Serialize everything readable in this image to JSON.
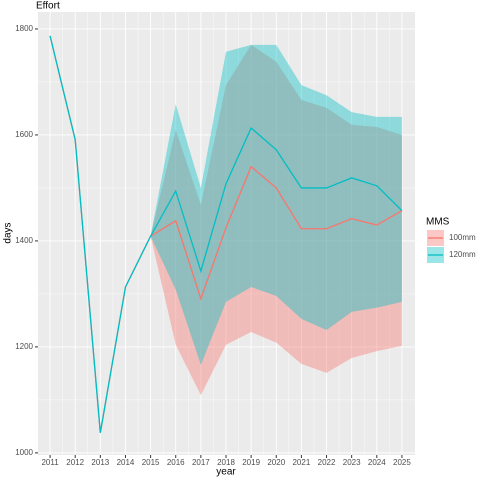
{
  "chart_data": {
    "type": "line",
    "title": "Effort",
    "x_label": "year",
    "y_label": "days",
    "x": [
      2011,
      2012,
      2013,
      2014,
      2015,
      2016,
      2017,
      2018,
      2019,
      2020,
      2021,
      2022,
      2023,
      2024,
      2025
    ],
    "series": [
      {
        "name": "100mm",
        "color": "#F8766D",
        "values": [
          1787,
          1591,
          1038,
          1313,
          1409,
          1438,
          1291,
          1425,
          1540,
          1500,
          1423,
          1423,
          1442,
          1430,
          1457
        ],
        "lower": [
          null,
          null,
          null,
          null,
          1409,
          1204,
          1109,
          1204,
          1228,
          1208,
          1168,
          1151,
          1179,
          1192,
          1202
        ],
        "upper": [
          null,
          null,
          null,
          null,
          1409,
          1609,
          1468,
          1694,
          1770,
          1738,
          1666,
          1651,
          1619,
          1615,
          1600
        ]
      },
      {
        "name": "120mm",
        "color": "#00BFC4",
        "values": [
          1787,
          1591,
          1038,
          1313,
          1409,
          1494,
          1343,
          1508,
          1613,
          1572,
          1500,
          1500,
          1519,
          1504,
          1457
        ],
        "lower": [
          null,
          null,
          null,
          null,
          1409,
          1308,
          1166,
          1285,
          1313,
          1296,
          1253,
          1232,
          1266,
          1274,
          1285
        ],
        "upper": [
          null,
          null,
          null,
          null,
          1409,
          1658,
          1500,
          1757,
          1770,
          1770,
          1694,
          1675,
          1643,
          1634,
          1634
        ]
      }
    ],
    "legend_title": "MMS",
    "legend_position": "right",
    "xlim": [
      2010.52,
      2025.52
    ],
    "xticks": [
      2011,
      2012,
      2013,
      2014,
      2015,
      2016,
      2017,
      2018,
      2019,
      2020,
      2021,
      2022,
      2023,
      2024,
      2025
    ],
    "ylim": [
      996,
      1832
    ],
    "yticks": [
      1000,
      1200,
      1400,
      1600,
      1800
    ],
    "grid": true
  }
}
